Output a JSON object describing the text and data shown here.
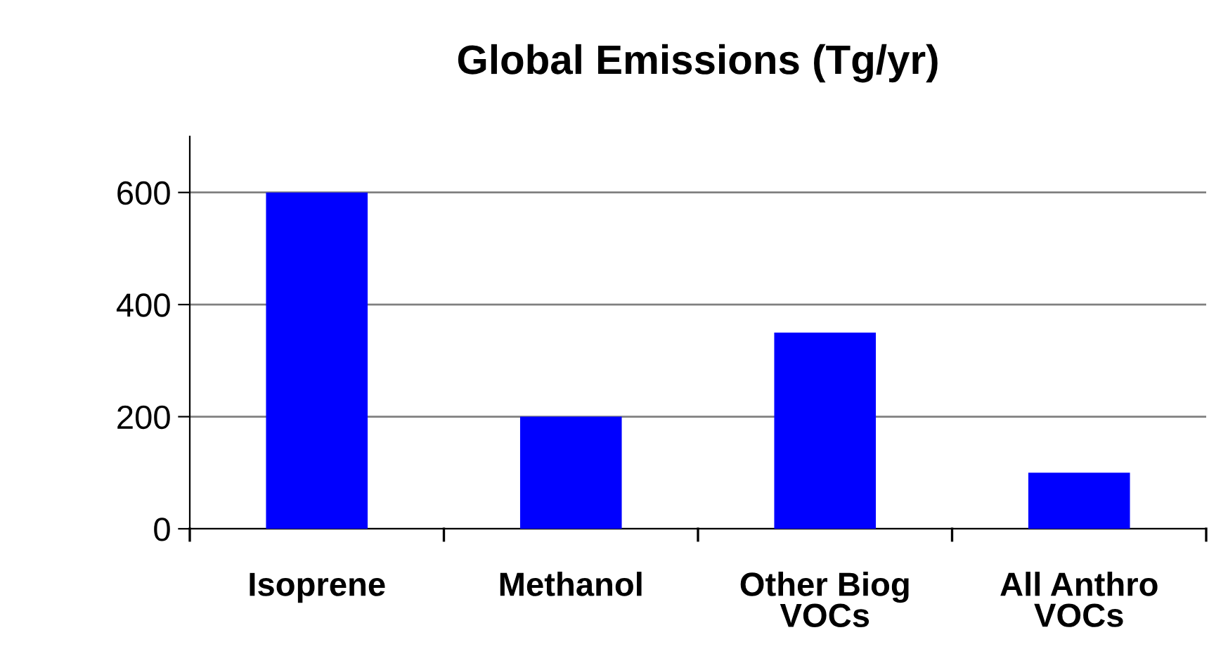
{
  "chart_data": {
    "type": "bar",
    "title": "Global Emissions (Tg/yr)",
    "categories": [
      "Isoprene",
      "Methanol",
      "Other Biog\nVOCs",
      "All Anthro\nVOCs"
    ],
    "values": [
      600,
      200,
      350,
      100
    ],
    "color": "#0000ff",
    "ylim": [
      0,
      700
    ],
    "yticks": [
      0,
      200,
      400,
      600
    ],
    "grid": "y",
    "legend": false
  }
}
